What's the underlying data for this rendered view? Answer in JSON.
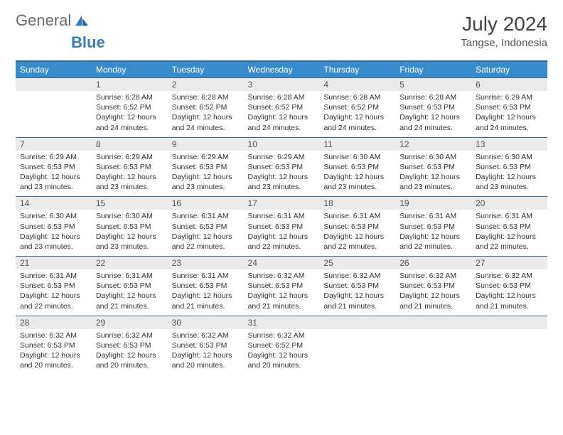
{
  "logo": {
    "text1": "General",
    "text2": "Blue"
  },
  "title": "July 2024",
  "subtitle": "Tangse, Indonesia",
  "colors": {
    "header_bg": "#3a8bc9",
    "header_border": "#2d6a9a",
    "daynum_bg": "#ebebeb",
    "text": "#333333",
    "logo_gray": "#6a6a6a",
    "logo_blue": "#3a7ab8"
  },
  "typography": {
    "title_fontsize": 28,
    "subtitle_fontsize": 15,
    "weekday_fontsize": 12,
    "daynum_fontsize": 12,
    "body_fontsize": 10.5
  },
  "layout": {
    "columns": 7,
    "rows": 5,
    "start_offset": 1
  },
  "weekdays": [
    "Sunday",
    "Monday",
    "Tuesday",
    "Wednesday",
    "Thursday",
    "Friday",
    "Saturday"
  ],
  "days": [
    {
      "n": 1,
      "sr": "6:28 AM",
      "ss": "6:52 PM",
      "dl": "12 hours and 24 minutes."
    },
    {
      "n": 2,
      "sr": "6:28 AM",
      "ss": "6:52 PM",
      "dl": "12 hours and 24 minutes."
    },
    {
      "n": 3,
      "sr": "6:28 AM",
      "ss": "6:52 PM",
      "dl": "12 hours and 24 minutes."
    },
    {
      "n": 4,
      "sr": "6:28 AM",
      "ss": "6:52 PM",
      "dl": "12 hours and 24 minutes."
    },
    {
      "n": 5,
      "sr": "6:28 AM",
      "ss": "6:53 PM",
      "dl": "12 hours and 24 minutes."
    },
    {
      "n": 6,
      "sr": "6:29 AM",
      "ss": "6:53 PM",
      "dl": "12 hours and 24 minutes."
    },
    {
      "n": 7,
      "sr": "6:29 AM",
      "ss": "6:53 PM",
      "dl": "12 hours and 23 minutes."
    },
    {
      "n": 8,
      "sr": "6:29 AM",
      "ss": "6:53 PM",
      "dl": "12 hours and 23 minutes."
    },
    {
      "n": 9,
      "sr": "6:29 AM",
      "ss": "6:53 PM",
      "dl": "12 hours and 23 minutes."
    },
    {
      "n": 10,
      "sr": "6:29 AM",
      "ss": "6:53 PM",
      "dl": "12 hours and 23 minutes."
    },
    {
      "n": 11,
      "sr": "6:30 AM",
      "ss": "6:53 PM",
      "dl": "12 hours and 23 minutes."
    },
    {
      "n": 12,
      "sr": "6:30 AM",
      "ss": "6:53 PM",
      "dl": "12 hours and 23 minutes."
    },
    {
      "n": 13,
      "sr": "6:30 AM",
      "ss": "6:53 PM",
      "dl": "12 hours and 23 minutes."
    },
    {
      "n": 14,
      "sr": "6:30 AM",
      "ss": "6:53 PM",
      "dl": "12 hours and 23 minutes."
    },
    {
      "n": 15,
      "sr": "6:30 AM",
      "ss": "6:53 PM",
      "dl": "12 hours and 23 minutes."
    },
    {
      "n": 16,
      "sr": "6:31 AM",
      "ss": "6:53 PM",
      "dl": "12 hours and 22 minutes."
    },
    {
      "n": 17,
      "sr": "6:31 AM",
      "ss": "6:53 PM",
      "dl": "12 hours and 22 minutes."
    },
    {
      "n": 18,
      "sr": "6:31 AM",
      "ss": "6:53 PM",
      "dl": "12 hours and 22 minutes."
    },
    {
      "n": 19,
      "sr": "6:31 AM",
      "ss": "6:53 PM",
      "dl": "12 hours and 22 minutes."
    },
    {
      "n": 20,
      "sr": "6:31 AM",
      "ss": "6:53 PM",
      "dl": "12 hours and 22 minutes."
    },
    {
      "n": 21,
      "sr": "6:31 AM",
      "ss": "6:53 PM",
      "dl": "12 hours and 22 minutes."
    },
    {
      "n": 22,
      "sr": "6:31 AM",
      "ss": "6:53 PM",
      "dl": "12 hours and 21 minutes."
    },
    {
      "n": 23,
      "sr": "6:31 AM",
      "ss": "6:53 PM",
      "dl": "12 hours and 21 minutes."
    },
    {
      "n": 24,
      "sr": "6:32 AM",
      "ss": "6:53 PM",
      "dl": "12 hours and 21 minutes."
    },
    {
      "n": 25,
      "sr": "6:32 AM",
      "ss": "6:53 PM",
      "dl": "12 hours and 21 minutes."
    },
    {
      "n": 26,
      "sr": "6:32 AM",
      "ss": "6:53 PM",
      "dl": "12 hours and 21 minutes."
    },
    {
      "n": 27,
      "sr": "6:32 AM",
      "ss": "6:53 PM",
      "dl": "12 hours and 21 minutes."
    },
    {
      "n": 28,
      "sr": "6:32 AM",
      "ss": "6:53 PM",
      "dl": "12 hours and 20 minutes."
    },
    {
      "n": 29,
      "sr": "6:32 AM",
      "ss": "6:53 PM",
      "dl": "12 hours and 20 minutes."
    },
    {
      "n": 30,
      "sr": "6:32 AM",
      "ss": "6:53 PM",
      "dl": "12 hours and 20 minutes."
    },
    {
      "n": 31,
      "sr": "6:32 AM",
      "ss": "6:52 PM",
      "dl": "12 hours and 20 minutes."
    }
  ],
  "labels": {
    "sunrise": "Sunrise:",
    "sunset": "Sunset:",
    "daylight": "Daylight:"
  }
}
